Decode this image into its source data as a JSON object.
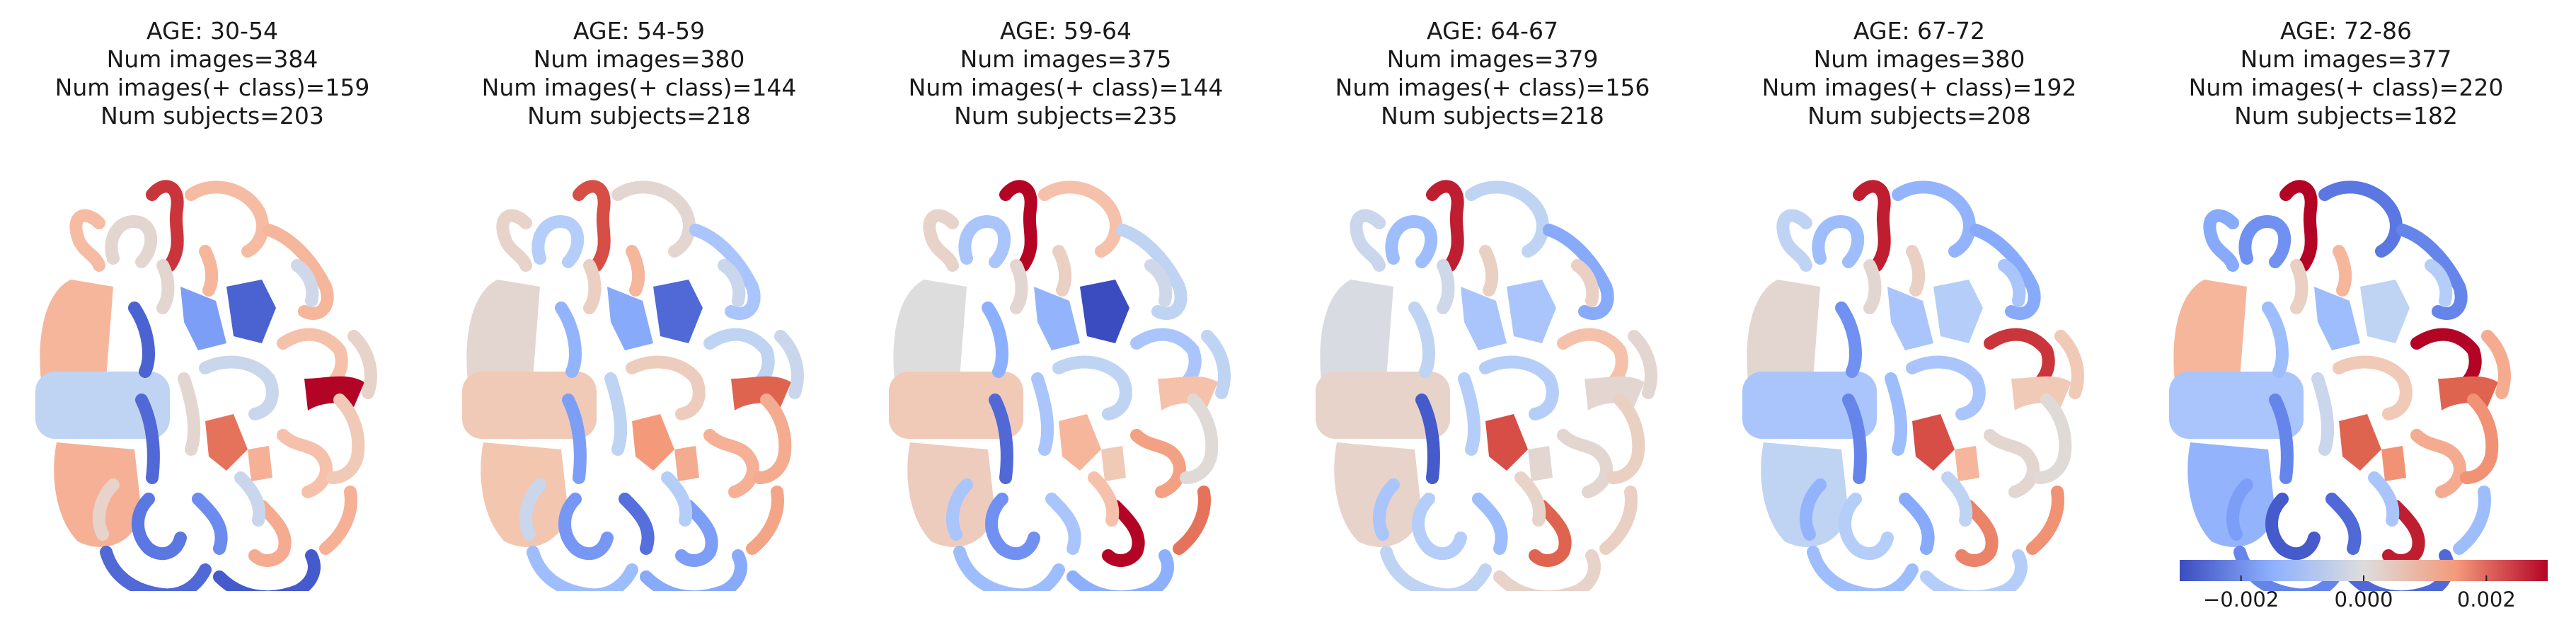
{
  "panels": [
    {
      "title": "AGE: 30-54",
      "images": "Num images=384",
      "pos": "Num images(+ class)=159",
      "subjects": "Num subjects=203",
      "region_values": [
        0.001,
        0.0011,
        -0.0006,
        0.0002,
        0.0026,
        0.0009,
        0.001,
        0.0009,
        -0.0018,
        -0.0027,
        -0.0004,
        0.0008,
        0.003,
        0.0008,
        -0.0024,
        -0.0026,
        -0.0028,
        0.0011,
        0.0012,
        -0.0021,
        0.0006,
        0.0002,
        -0.0027,
        -0.0003,
        0.002,
        0.0011,
        -0.0026,
        0.0003,
        0.0002,
        -0.0004,
        0.0003,
        0.001
      ]
    },
    {
      "title": "AGE: 54-59",
      "images": "Num images=380",
      "pos": "Num images(+ class)=144",
      "subjects": "Num subjects=218",
      "region_values": [
        0.0002,
        0.0007,
        0.0006,
        -0.0008,
        0.0024,
        0.0002,
        -0.001,
        0.0003,
        -0.0016,
        -0.0026,
        0.0005,
        -0.0006,
        0.0022,
        0.0011,
        -0.0019,
        -0.0012,
        -0.0016,
        0.0013,
        -0.0018,
        -0.0025,
        0.0012,
        -0.0006,
        -0.0014,
        -0.0004,
        0.0015,
        0.0012,
        -0.0018,
        -0.0004,
        0.0004,
        -0.0008,
        -0.0004,
        0.001
      ]
    },
    {
      "title": "AGE: 59-64",
      "images": "Num images=375",
      "pos": "Num images(+ class)=144",
      "subjects": "Num subjects=235",
      "region_values": [
        0.0,
        0.0005,
        0.0006,
        -0.001,
        0.003,
        0.0008,
        -0.0006,
        0.0003,
        -0.0014,
        -0.003,
        -0.0006,
        -0.001,
        0.0008,
        0.0014,
        -0.002,
        -0.0012,
        -0.0015,
        0.002,
        0.003,
        -0.001,
        0.0001,
        -0.001,
        -0.0015,
        -0.0003,
        0.001,
        0.0006,
        -0.0026,
        -0.0006,
        0.0002,
        0.0008,
        -0.001,
        0.0004
      ]
    },
    {
      "title": "AGE: 64-67",
      "images": "Num images=379",
      "pos": "Num images(+ class)=156",
      "subjects": "Num subjects=218",
      "region_values": [
        -0.0001,
        0.0003,
        0.0003,
        -0.0012,
        0.0028,
        -0.0006,
        -0.0016,
        -0.0004,
        -0.001,
        -0.001,
        -0.0008,
        0.0008,
        0.0002,
        0.0002,
        -0.0008,
        -0.0006,
        0.0003,
        0.0004,
        0.0022,
        -0.0012,
        0.0004,
        -0.0008,
        -0.0006,
        0.0004,
        0.0024,
        0.0002,
        -0.0028,
        0.0002,
        -0.0003,
        0.0003,
        -0.001,
        0.0004
      ]
    },
    {
      "title": "AGE: 67-72",
      "images": "Num images=380",
      "pos": "Num images(+ class)=192",
      "subjects": "Num subjects=208",
      "region_values": [
        0.0002,
        -0.0006,
        -0.001,
        -0.0012,
        0.0028,
        -0.0014,
        -0.0016,
        -0.0006,
        -0.001,
        -0.0008,
        -0.001,
        0.0026,
        0.0006,
        0.0002,
        -0.0008,
        -0.0012,
        -0.0008,
        0.0016,
        0.0018,
        -0.0016,
        0.0001,
        -0.0012,
        -0.002,
        -0.001,
        0.0024,
        0.001,
        -0.0022,
        0.0006,
        0.0002,
        -0.0006,
        -0.0014,
        0.0004
      ]
    },
    {
      "title": "AGE: 72-86",
      "images": "Num images=377",
      "pos": "Num images(+ class)=220",
      "subjects": "Num subjects=182",
      "region_values": [
        0.001,
        -0.0014,
        -0.001,
        -0.002,
        0.003,
        -0.0024,
        -0.0022,
        -0.0016,
        -0.0012,
        -0.0006,
        0.0006,
        0.003,
        0.0022,
        0.0012,
        -0.0028,
        -0.0022,
        -0.0026,
        -0.0012,
        0.0028,
        -0.0026,
        0.0016,
        -0.0004,
        -0.0012,
        -0.0008,
        0.0022,
        0.0016,
        -0.0022,
        0.0012,
        0.0004,
        -0.001,
        -0.0018,
        0.001
      ]
    }
  ],
  "colorbar": {
    "colormap": "coolwarm",
    "min": -0.003,
    "max": 0.003,
    "ticks": [
      {
        "value": -0.002,
        "label": "−0.002"
      },
      {
        "value": 0.0,
        "label": "0.000"
      },
      {
        "value": 0.002,
        "label": "0.002"
      }
    ]
  },
  "chart_data": {
    "type": "heatmap",
    "description_scale": "coolwarm",
    "range": [
      -0.003,
      0.003
    ]
  }
}
